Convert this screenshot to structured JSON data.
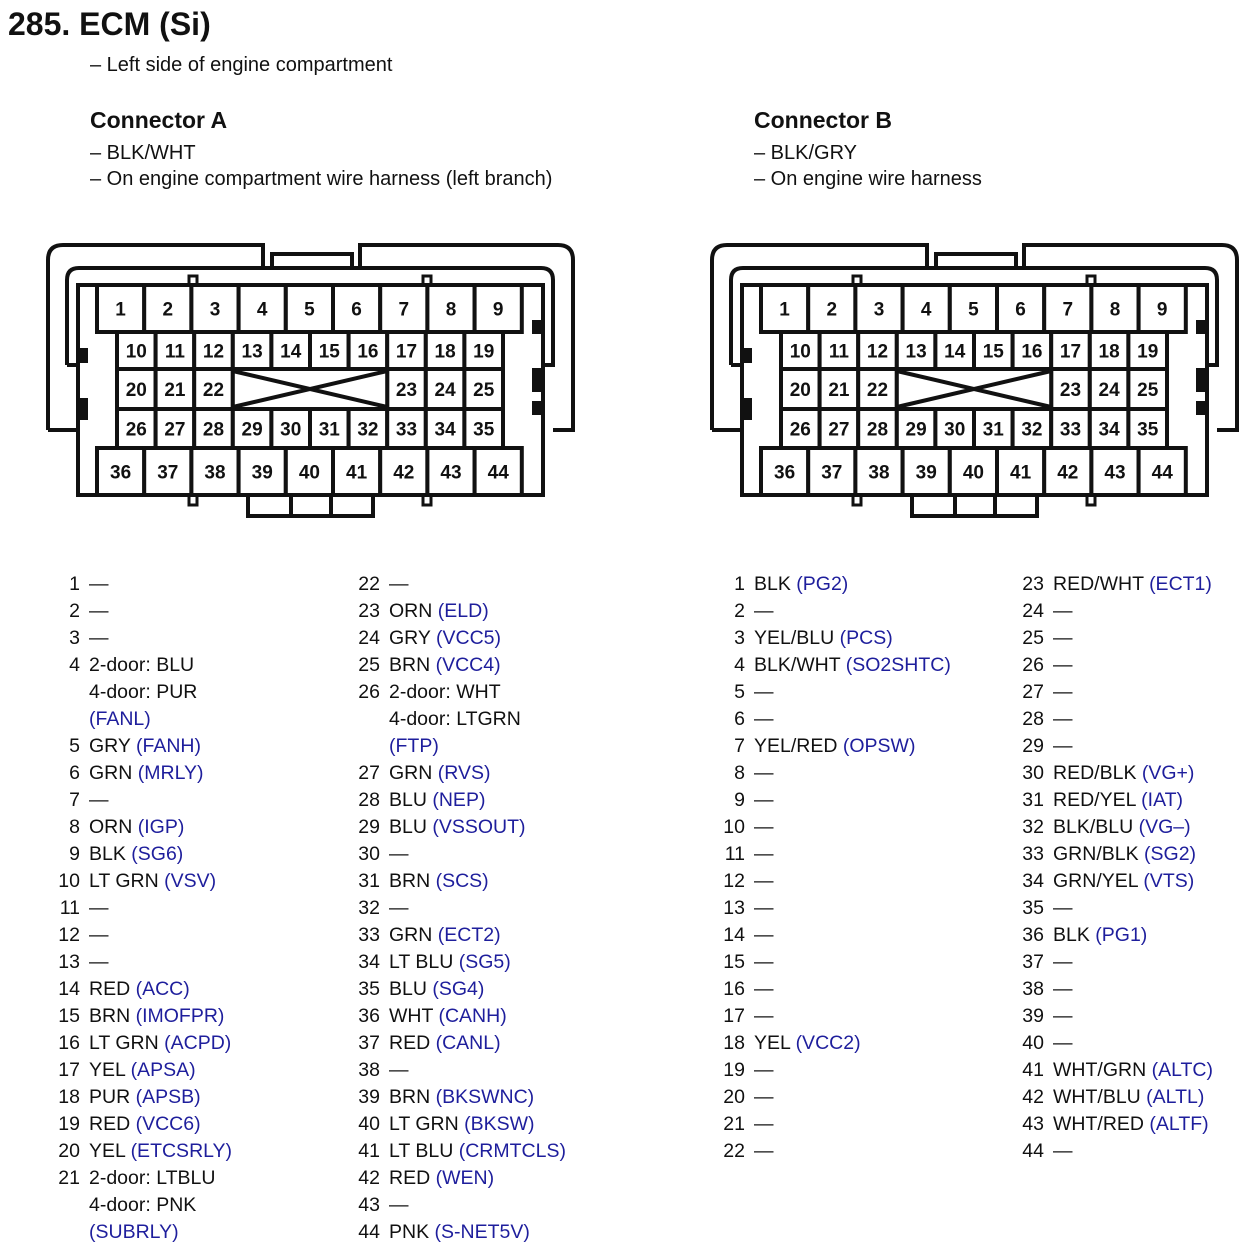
{
  "title": "285. ECM (Si)",
  "location": "– Left side of engine compartment",
  "connectors": [
    {
      "heading": "Connector A",
      "notes": [
        "– BLK/WHT",
        "– On engine compartment wire harness (left branch)"
      ]
    },
    {
      "heading": "Connector B",
      "notes": [
        "– BLK/GRY",
        "– On engine wire harness"
      ]
    }
  ],
  "cavity_rows": [
    [
      1,
      2,
      3,
      4,
      5,
      6,
      7,
      8,
      9
    ],
    [
      10,
      11,
      12,
      13,
      14,
      15,
      16,
      17,
      18,
      19
    ],
    [
      20,
      21,
      22,
      23,
      24,
      25
    ],
    [
      26,
      27,
      28,
      29,
      30,
      31,
      32,
      33,
      34,
      35
    ],
    [
      36,
      37,
      38,
      39,
      40,
      41,
      42,
      43,
      44
    ]
  ],
  "colors": {
    "text": "#111111",
    "terminal_code": "#1e1e9c"
  },
  "connector_a_pins": [
    [
      {
        "pin": "1",
        "wire": [
          "—"
        ],
        "code": ""
      },
      {
        "pin": "2",
        "wire": [
          "—"
        ],
        "code": ""
      },
      {
        "pin": "3",
        "wire": [
          "—"
        ],
        "code": ""
      },
      {
        "pin": "4",
        "wire": [
          "2-door: BLU",
          "4-door: PUR"
        ],
        "code": "(FANL)"
      },
      {
        "pin": "5",
        "wire": [
          "GRY"
        ],
        "code": "(FANH)"
      },
      {
        "pin": "6",
        "wire": [
          "GRN"
        ],
        "code": "(MRLY)"
      },
      {
        "pin": "7",
        "wire": [
          "—"
        ],
        "code": ""
      },
      {
        "pin": "8",
        "wire": [
          "ORN"
        ],
        "code": "(IGP)"
      },
      {
        "pin": "9",
        "wire": [
          "BLK"
        ],
        "code": "(SG6)"
      },
      {
        "pin": "10",
        "wire": [
          "LT GRN"
        ],
        "code": "(VSV)"
      },
      {
        "pin": "11",
        "wire": [
          "—"
        ],
        "code": ""
      },
      {
        "pin": "12",
        "wire": [
          "—"
        ],
        "code": ""
      },
      {
        "pin": "13",
        "wire": [
          "—"
        ],
        "code": ""
      },
      {
        "pin": "14",
        "wire": [
          "RED"
        ],
        "code": "(ACC)"
      },
      {
        "pin": "15",
        "wire": [
          "BRN"
        ],
        "code": "(IMOFPR)"
      },
      {
        "pin": "16",
        "wire": [
          "LT GRN"
        ],
        "code": "(ACPD)"
      },
      {
        "pin": "17",
        "wire": [
          "YEL"
        ],
        "code": "(APSA)"
      },
      {
        "pin": "18",
        "wire": [
          "PUR"
        ],
        "code": "(APSB)"
      },
      {
        "pin": "19",
        "wire": [
          "RED"
        ],
        "code": "(VCC6)"
      },
      {
        "pin": "20",
        "wire": [
          "YEL"
        ],
        "code": "(ETCSRLY)"
      },
      {
        "pin": "21",
        "wire": [
          "2-door: LTBLU",
          "4-door: PNK"
        ],
        "code": "(SUBRLY)"
      }
    ],
    [
      {
        "pin": "22",
        "wire": [
          "—"
        ],
        "code": ""
      },
      {
        "pin": "23",
        "wire": [
          "ORN"
        ],
        "code": "(ELD)"
      },
      {
        "pin": "24",
        "wire": [
          "GRY"
        ],
        "code": "(VCC5)"
      },
      {
        "pin": "25",
        "wire": [
          "BRN"
        ],
        "code": "(VCC4)"
      },
      {
        "pin": "26",
        "wire": [
          "2-door: WHT",
          "4-door: LTGRN"
        ],
        "code": "(FTP)"
      },
      {
        "pin": "27",
        "wire": [
          "GRN"
        ],
        "code": "(RVS)"
      },
      {
        "pin": "28",
        "wire": [
          "BLU"
        ],
        "code": "(NEP)"
      },
      {
        "pin": "29",
        "wire": [
          "BLU"
        ],
        "code": "(VSSOUT)"
      },
      {
        "pin": "30",
        "wire": [
          "—"
        ],
        "code": ""
      },
      {
        "pin": "31",
        "wire": [
          "BRN"
        ],
        "code": "(SCS)"
      },
      {
        "pin": "32",
        "wire": [
          "—"
        ],
        "code": ""
      },
      {
        "pin": "33",
        "wire": [
          "GRN"
        ],
        "code": "(ECT2)"
      },
      {
        "pin": "34",
        "wire": [
          "LT BLU"
        ],
        "code": "(SG5)"
      },
      {
        "pin": "35",
        "wire": [
          "BLU"
        ],
        "code": "(SG4)"
      },
      {
        "pin": "36",
        "wire": [
          "WHT"
        ],
        "code": "(CANH)"
      },
      {
        "pin": "37",
        "wire": [
          "RED"
        ],
        "code": "(CANL)"
      },
      {
        "pin": "38",
        "wire": [
          "—"
        ],
        "code": ""
      },
      {
        "pin": "39",
        "wire": [
          "BRN"
        ],
        "code": "(BKSWNC)"
      },
      {
        "pin": "40",
        "wire": [
          "LT GRN"
        ],
        "code": "(BKSW)"
      },
      {
        "pin": "41",
        "wire": [
          "LT BLU"
        ],
        "code": "(CRMTCLS)"
      },
      {
        "pin": "42",
        "wire": [
          "RED"
        ],
        "code": "(WEN)"
      },
      {
        "pin": "43",
        "wire": [
          "—"
        ],
        "code": ""
      },
      {
        "pin": "44",
        "wire": [
          "PNK"
        ],
        "code": "(S-NET5V)"
      }
    ]
  ],
  "connector_b_pins": [
    [
      {
        "pin": "1",
        "wire": [
          "BLK"
        ],
        "code": "(PG2)"
      },
      {
        "pin": "2",
        "wire": [
          "—"
        ],
        "code": ""
      },
      {
        "pin": "3",
        "wire": [
          "YEL/BLU"
        ],
        "code": "(PCS)"
      },
      {
        "pin": "4",
        "wire": [
          "BLK/WHT"
        ],
        "code": "(SO2SHTC)"
      },
      {
        "pin": "5",
        "wire": [
          "—"
        ],
        "code": ""
      },
      {
        "pin": "6",
        "wire": [
          "—"
        ],
        "code": ""
      },
      {
        "pin": "7",
        "wire": [
          "YEL/RED"
        ],
        "code": "(OPSW)"
      },
      {
        "pin": "8",
        "wire": [
          "—"
        ],
        "code": ""
      },
      {
        "pin": "9",
        "wire": [
          "—"
        ],
        "code": ""
      },
      {
        "pin": "10",
        "wire": [
          "—"
        ],
        "code": ""
      },
      {
        "pin": "11",
        "wire": [
          "—"
        ],
        "code": ""
      },
      {
        "pin": "12",
        "wire": [
          "—"
        ],
        "code": ""
      },
      {
        "pin": "13",
        "wire": [
          "—"
        ],
        "code": ""
      },
      {
        "pin": "14",
        "wire": [
          "—"
        ],
        "code": ""
      },
      {
        "pin": "15",
        "wire": [
          "—"
        ],
        "code": ""
      },
      {
        "pin": "16",
        "wire": [
          "—"
        ],
        "code": ""
      },
      {
        "pin": "17",
        "wire": [
          "—"
        ],
        "code": ""
      },
      {
        "pin": "18",
        "wire": [
          "YEL"
        ],
        "code": "(VCC2)"
      },
      {
        "pin": "19",
        "wire": [
          "—"
        ],
        "code": ""
      },
      {
        "pin": "20",
        "wire": [
          "—"
        ],
        "code": ""
      },
      {
        "pin": "21",
        "wire": [
          "—"
        ],
        "code": ""
      },
      {
        "pin": "22",
        "wire": [
          "—"
        ],
        "code": ""
      }
    ],
    [
      {
        "pin": "23",
        "wire": [
          "RED/WHT"
        ],
        "code": "(ECT1)"
      },
      {
        "pin": "24",
        "wire": [
          "—"
        ],
        "code": ""
      },
      {
        "pin": "25",
        "wire": [
          "—"
        ],
        "code": ""
      },
      {
        "pin": "26",
        "wire": [
          "—"
        ],
        "code": ""
      },
      {
        "pin": "27",
        "wire": [
          "—"
        ],
        "code": ""
      },
      {
        "pin": "28",
        "wire": [
          "—"
        ],
        "code": ""
      },
      {
        "pin": "29",
        "wire": [
          "—"
        ],
        "code": ""
      },
      {
        "pin": "30",
        "wire": [
          "RED/BLK"
        ],
        "code": "(VG+)"
      },
      {
        "pin": "31",
        "wire": [
          "RED/YEL"
        ],
        "code": "(IAT)"
      },
      {
        "pin": "32",
        "wire": [
          "BLK/BLU"
        ],
        "code": "(VG–)"
      },
      {
        "pin": "33",
        "wire": [
          "GRN/BLK"
        ],
        "code": "(SG2)"
      },
      {
        "pin": "34",
        "wire": [
          "GRN/YEL"
        ],
        "code": "(VTS)"
      },
      {
        "pin": "35",
        "wire": [
          "—"
        ],
        "code": ""
      },
      {
        "pin": "36",
        "wire": [
          "BLK"
        ],
        "code": "(PG1)"
      },
      {
        "pin": "37",
        "wire": [
          "—"
        ],
        "code": ""
      },
      {
        "pin": "38",
        "wire": [
          "—"
        ],
        "code": ""
      },
      {
        "pin": "39",
        "wire": [
          "—"
        ],
        "code": ""
      },
      {
        "pin": "40",
        "wire": [
          "—"
        ],
        "code": ""
      },
      {
        "pin": "41",
        "wire": [
          "WHT/GRN"
        ],
        "code": "(ALTC)"
      },
      {
        "pin": "42",
        "wire": [
          "WHT/BLU"
        ],
        "code": "(ALTL)"
      },
      {
        "pin": "43",
        "wire": [
          "WHT/RED"
        ],
        "code": "(ALTF)"
      },
      {
        "pin": "44",
        "wire": [
          "—"
        ],
        "code": ""
      }
    ]
  ]
}
